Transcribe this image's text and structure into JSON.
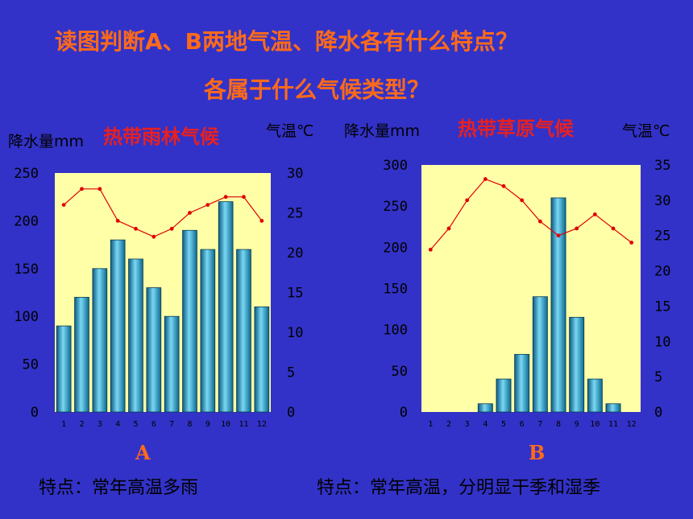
{
  "question": {
    "line1": "读图判断A、B两地气温、降水各有什么特点？",
    "line2": "各属于什么气候类型？"
  },
  "chart_data": [
    {
      "type": "bar",
      "label": "A",
      "title": "热带雨林气候",
      "left_axis_label": "降水量mm",
      "right_axis_label": "气温℃",
      "categories": [
        "1",
        "2",
        "3",
        "4",
        "5",
        "6",
        "7",
        "8",
        "9",
        "10",
        "11",
        "12"
      ],
      "series": [
        {
          "name": "降水量",
          "type": "bar",
          "axis": "left",
          "values": [
            90,
            120,
            150,
            180,
            160,
            130,
            100,
            190,
            170,
            220,
            170,
            110
          ]
        },
        {
          "name": "气温",
          "type": "line",
          "axis": "right",
          "values": [
            26,
            28,
            28,
            24,
            23,
            22,
            23,
            25,
            26,
            27,
            27,
            24
          ]
        }
      ],
      "ylim_left": [
        0,
        250
      ],
      "yticks_left": [
        0,
        50,
        100,
        150,
        200,
        250
      ],
      "ylim_right": [
        0,
        30
      ],
      "yticks_right": [
        0,
        5,
        10,
        15,
        20,
        25,
        30
      ],
      "feature": "特点：常年高温多雨"
    },
    {
      "type": "bar",
      "label": "B",
      "title": "热带草原气候",
      "left_axis_label": "降水量mm",
      "right_axis_label": "气温℃",
      "categories": [
        "1",
        "2",
        "3",
        "4",
        "5",
        "6",
        "7",
        "8",
        "9",
        "10",
        "11",
        "12"
      ],
      "series": [
        {
          "name": "降水量",
          "type": "bar",
          "axis": "left",
          "values": [
            0,
            0,
            0,
            10,
            40,
            70,
            140,
            260,
            115,
            40,
            10,
            0
          ]
        },
        {
          "name": "气温",
          "type": "line",
          "axis": "right",
          "values": [
            23,
            26,
            30,
            33,
            32,
            30,
            27,
            25,
            26,
            28,
            26,
            24
          ]
        }
      ],
      "ylim_left": [
        0,
        300
      ],
      "yticks_left": [
        0,
        50,
        100,
        150,
        200,
        250,
        300
      ],
      "ylim_right": [
        0,
        35
      ],
      "yticks_right": [
        0,
        5,
        10,
        15,
        20,
        25,
        30,
        35
      ],
      "feature": "特点：常年高温，分明显干季和湿季"
    }
  ],
  "colors": {
    "background": "#3232c8",
    "plot_area": "#ffffa8",
    "bar": "#20a8d8",
    "line": "#e00000",
    "title_orange": "#ff6a1a",
    "climate_red": "#e82020"
  }
}
